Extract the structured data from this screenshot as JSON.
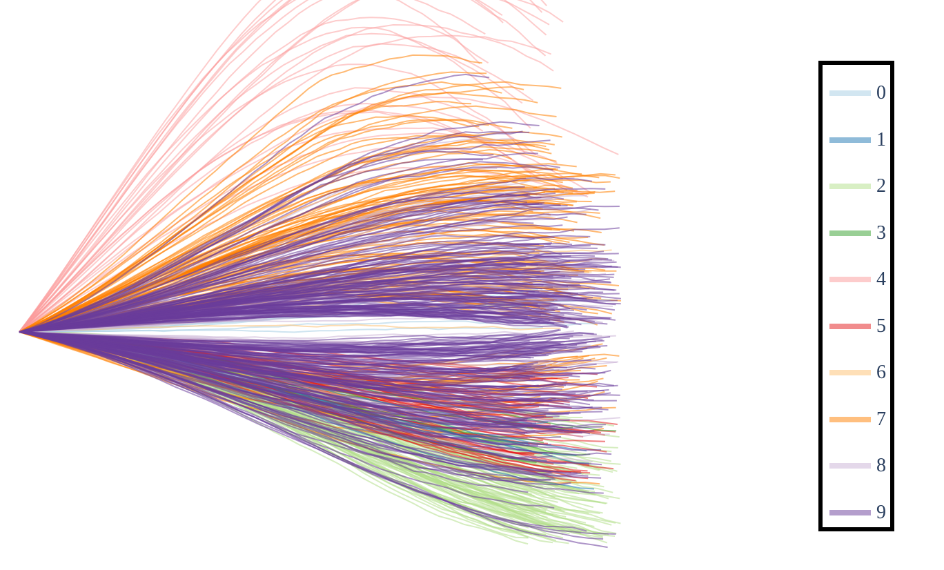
{
  "chart_data": {
    "type": "line",
    "title": "",
    "xlabel": "",
    "ylabel": "",
    "axes_visible": false,
    "grid": false,
    "legend_position": "right",
    "series": [
      {
        "name": "0",
        "color": "#a6cee3",
        "opacity": 0.55,
        "count": 6,
        "mean_end": 0.1,
        "spread": 0.05,
        "arch": 0.0
      },
      {
        "name": "1",
        "color": "#1f78b4",
        "opacity": 0.55,
        "count": 8,
        "mean_end": -0.38,
        "spread": 0.1,
        "arch": 0.0
      },
      {
        "name": "2",
        "color": "#b2df8a",
        "opacity": 0.55,
        "count": 110,
        "mean_end": -0.62,
        "spread": 0.14,
        "arch": -0.04
      },
      {
        "name": "3",
        "color": "#33a02c",
        "opacity": 0.55,
        "count": 6,
        "mean_end": -0.4,
        "spread": 0.06,
        "arch": 0.0
      },
      {
        "name": "4",
        "color": "#fb9a99",
        "opacity": 0.5,
        "count": 26,
        "mean_end": 0.8,
        "spread": 0.45,
        "arch": 0.45
      },
      {
        "name": "5",
        "color": "#e31a1c",
        "opacity": 0.55,
        "count": 45,
        "mean_end": -0.38,
        "spread": 0.12,
        "arch": 0.0
      },
      {
        "name": "6",
        "color": "#fdbf6f",
        "opacity": 0.55,
        "count": 10,
        "mean_end": 0.15,
        "spread": 0.1,
        "arch": 0.02
      },
      {
        "name": "7",
        "color": "#ff7f00",
        "opacity": 0.55,
        "count": 130,
        "mean_end": 0.3,
        "spread": 0.32,
        "arch": 0.12
      },
      {
        "name": "8",
        "color": "#cab2d6",
        "opacity": 0.55,
        "count": 45,
        "mean_end": 0.05,
        "spread": 0.3,
        "arch": 0.02
      },
      {
        "name": "9",
        "color": "#6a3d9a",
        "opacity": 0.55,
        "count": 260,
        "mean_end": 0.0,
        "spread": 0.28,
        "arch": 0.05
      }
    ],
    "x_range": [
      0,
      1
    ],
    "y_range": [
      -1,
      1
    ]
  },
  "legend": {
    "items": [
      {
        "label": "0",
        "color": "#a6cee3",
        "opacity": 0.5
      },
      {
        "label": "1",
        "color": "#1f78b4",
        "opacity": 0.5
      },
      {
        "label": "2",
        "color": "#b2df8a",
        "opacity": 0.5
      },
      {
        "label": "3",
        "color": "#33a02c",
        "opacity": 0.5
      },
      {
        "label": "4",
        "color": "#fb9a99",
        "opacity": 0.5
      },
      {
        "label": "5",
        "color": "#e31a1c",
        "opacity": 0.5
      },
      {
        "label": "6",
        "color": "#fdbf6f",
        "opacity": 0.5
      },
      {
        "label": "7",
        "color": "#ff7f00",
        "opacity": 0.5
      },
      {
        "label": "8",
        "color": "#cab2d6",
        "opacity": 0.5
      },
      {
        "label": "9",
        "color": "#6a3d9a",
        "opacity": 0.5
      }
    ]
  }
}
